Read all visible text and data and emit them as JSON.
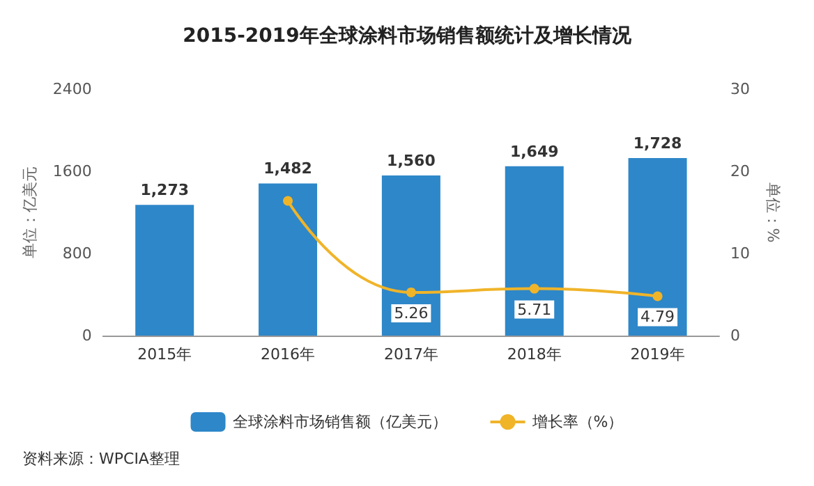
{
  "chart_data": {
    "type": "bar",
    "title": "2015-2019年全球涂料市场销售额统计及增长情况",
    "categories": [
      "2015年",
      "2016年",
      "2017年",
      "2018年",
      "2019年"
    ],
    "series": [
      {
        "name": "全球涂料市场销售额（亿美元）",
        "color": "#2e87c8",
        "values": [
          1273,
          1482,
          1560,
          1649,
          1728
        ],
        "value_labels": [
          "1,273",
          "1,482",
          "1,560",
          "1,649",
          "1,728"
        ]
      },
      {
        "name": "增长率（%）",
        "type": "line",
        "axis": "y2",
        "color": "#f0b429",
        "marker": "circle",
        "values": [
          null,
          16.4,
          5.26,
          5.71,
          4.79
        ],
        "value_labels": [
          null,
          null,
          "5.26",
          "5.71",
          "4.79"
        ]
      }
    ],
    "ylabel": "单位：亿美元",
    "y2label": "单位：%",
    "ylim": [
      0,
      2400
    ],
    "yticks": [
      0,
      800,
      1600,
      2400
    ],
    "y2lim": [
      0,
      30
    ],
    "y2ticks": [
      0,
      10,
      20,
      30
    ],
    "grid": false,
    "legend": "bottom",
    "annotations": [
      "资料来源：WPCIA整理"
    ]
  }
}
